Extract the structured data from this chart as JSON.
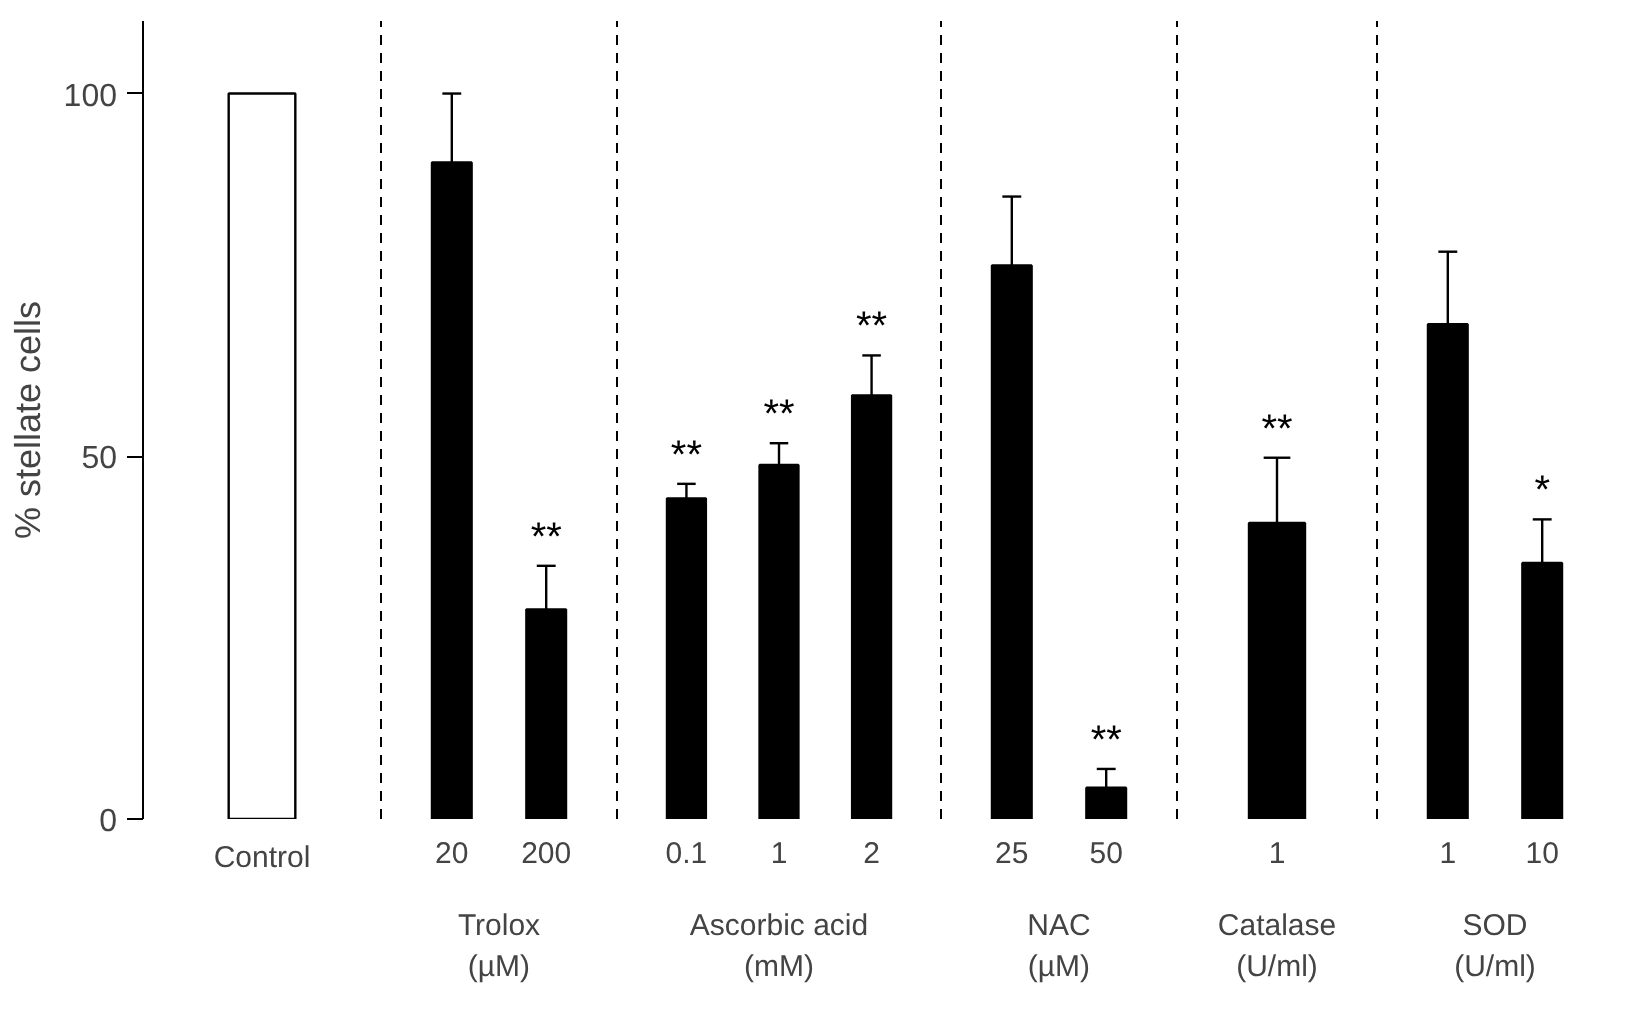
{
  "chart_data": [
    {
      "type": "bar",
      "categories": [
        "Control"
      ],
      "values": [
        100
      ],
      "color": "#ffffff",
      "ylabel": "% stellate cells",
      "ylim": [
        0,
        110
      ],
      "yticks": [
        0,
        50,
        100
      ],
      "grid": false
    },
    {
      "type": "bar",
      "categories": [
        "20",
        "200"
      ],
      "values": [
        90.5,
        28.9
      ],
      "errors": [
        9.5,
        6
      ],
      "value_labels": [
        null,
        "**"
      ],
      "color": "#000000",
      "xlabel": "Trolox\n(µM)",
      "ylim": [
        0,
        110
      ],
      "tick_labels": "x",
      "grid": false
    },
    {
      "type": "bar",
      "categories": [
        "0.1",
        "1",
        "2"
      ],
      "values": [
        44.2,
        48.8,
        58.4
      ],
      "errors": [
        2,
        3,
        5.5
      ],
      "value_labels": [
        "**",
        "**",
        "**"
      ],
      "color": "#000000",
      "xlabel": "Ascorbic acid\n(mM)",
      "ylim": [
        0,
        110
      ],
      "tick_labels": "x",
      "grid": false
    },
    {
      "type": "bar",
      "categories": [
        "25",
        "50"
      ],
      "values": [
        76.3,
        4.3
      ],
      "errors": [
        9.5,
        2.6
      ],
      "value_labels": [
        null,
        "**"
      ],
      "color": "#000000",
      "xlabel": "NAC\n(µM)",
      "ylim": [
        0,
        110
      ],
      "tick_labels": "x",
      "grid": false
    },
    {
      "type": "bar",
      "categories": [
        "1"
      ],
      "values": [
        40.8
      ],
      "errors": [
        9
      ],
      "value_labels": [
        "**"
      ],
      "color": "#000000",
      "xlabel": "Catalase\n(U/ml)",
      "ylim": [
        0,
        110
      ],
      "tick_labels": "x",
      "grid": false
    },
    {
      "type": "bar",
      "categories": [
        "1",
        "10"
      ],
      "values": [
        68.2,
        35.3
      ],
      "errors": [
        10,
        6
      ],
      "value_labels": [
        null,
        "*"
      ],
      "color": "#000000",
      "xlabel": "SOD\n(U/ml)",
      "ylim": [
        0,
        110
      ],
      "tick_labels": "x",
      "grid": false
    }
  ]
}
